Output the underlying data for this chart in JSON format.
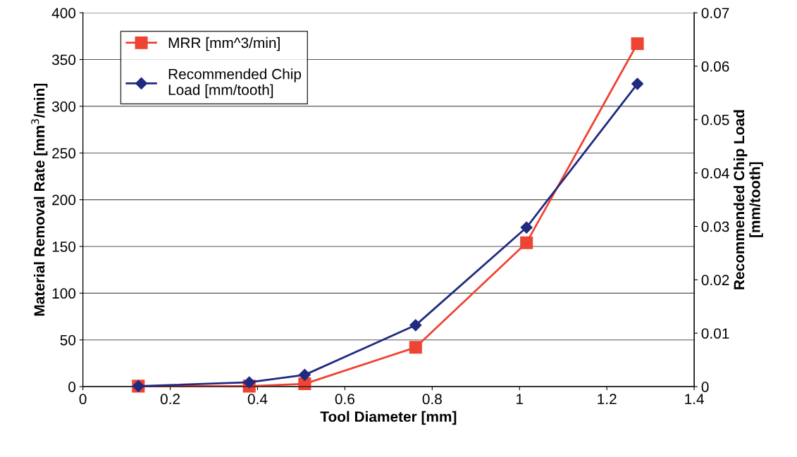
{
  "chart_data": {
    "type": "line",
    "xlabel": "Tool Diameter [mm]",
    "ylabel": "Material Removal Rate [mm$^{3}$/min]",
    "y2label": "Recommended Chip Load\n[mm/tooth]",
    "x": [
      0.127,
      0.381,
      0.508,
      0.762,
      1.016,
      1.27
    ],
    "series": [
      {
        "name": "MRR [mm^3/min]",
        "color": "#ee4433",
        "marker": "square",
        "values": [
          0.5,
          0.5,
          3,
          42,
          154,
          367
        ]
      },
      {
        "name": "Recommended Chip\nLoad [mm/tooth]",
        "color": "#1f2a80",
        "marker": "diamond",
        "axis": "y2",
        "values": [
          0.0001,
          0.0008,
          0.0022,
          0.0115,
          0.0298,
          0.0567
        ]
      }
    ],
    "xlim": [
      0,
      1.4
    ],
    "xticks": [
      0,
      0.2,
      0.4,
      0.6,
      0.8,
      1,
      1.2,
      1.4
    ],
    "ylim": [
      0,
      400
    ],
    "yticks": [
      0,
      50,
      100,
      150,
      200,
      250,
      300,
      350,
      400
    ],
    "y2lim": [
      0,
      0.07
    ],
    "y2ticks": [
      0,
      0.01,
      0.02,
      0.03,
      0.04,
      0.05,
      0.06,
      0.07
    ],
    "grid": "y",
    "legend": "top left",
    "line_style": "solid"
  }
}
